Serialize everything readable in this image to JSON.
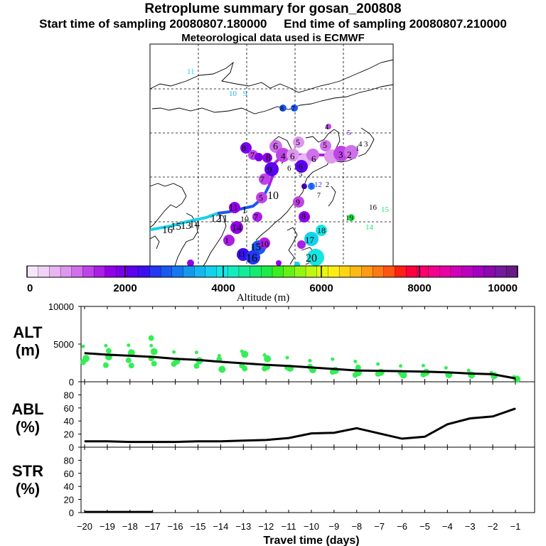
{
  "title": "Retroplume summary for gosan_200808",
  "subtitle_start": "Start time of sampling 20080807.180000",
  "subtitle_end": "End time of sampling 20080807.210000",
  "met_line": "Meteorological data used is ECMWF",
  "colorbar": {
    "label": "Altitude (m)",
    "ticks": [
      "0",
      "2000",
      "4000",
      "6000",
      "8000",
      "10000"
    ],
    "min": 0,
    "max": 10000,
    "colors": [
      "#f6e6fa",
      "#f0d2f6",
      "#e8b6f2",
      "#de96ee",
      "#d070ea",
      "#bf44e8",
      "#aa1ee6",
      "#9200e8",
      "#7a00ea",
      "#5c00ee",
      "#3a10f0",
      "#2238f2",
      "#1a58f0",
      "#1678f0",
      "#1498ee",
      "#14b8ee",
      "#14d2ec",
      "#14e6e2",
      "#14ecc0",
      "#14ec98",
      "#14ec70",
      "#1cec48",
      "#3cee20",
      "#66f014",
      "#94f414",
      "#c0f614",
      "#e4f614",
      "#fcee14",
      "#fed414",
      "#feb814",
      "#fe9a14",
      "#fe7814",
      "#fe5414",
      "#fe2014",
      "#fe0040",
      "#fa006a",
      "#f2008c",
      "#e600a6",
      "#d200b6",
      "#bc00c0",
      "#a400c0",
      "#8a0aae",
      "#741a9c",
      "#6a1a86"
    ]
  },
  "map_labels": [
    "11",
    "10",
    "9",
    "8",
    "7",
    "6",
    "5",
    "4",
    "3",
    "2",
    "1",
    "12",
    "13",
    "14",
    "15",
    "16",
    "17",
    "18",
    "19",
    "20"
  ],
  "chart_data": [
    {
      "id": "alt",
      "type": "line",
      "ylabel": "ALT\n(m)",
      "y_ticks": [
        0,
        5000,
        10000
      ],
      "ylim": [
        0,
        10000
      ],
      "x": [
        -20,
        -19,
        -18,
        -17,
        -16,
        -15,
        -14,
        -13,
        -12,
        -11,
        -10,
        -9,
        -8,
        -7,
        -6,
        -5,
        -4,
        -3,
        -2,
        -1
      ],
      "values": [
        3800,
        3600,
        3450,
        3300,
        3050,
        2900,
        2650,
        2450,
        2250,
        2100,
        1900,
        1700,
        1500,
        1450,
        1400,
        1350,
        1250,
        1100,
        1000,
        450
      ],
      "scatter_note": "green dots = particle cluster altitudes"
    },
    {
      "id": "abl",
      "type": "line",
      "ylabel": "ABL\n(%)",
      "y_ticks": [
        0,
        20,
        40,
        60,
        80
      ],
      "ylim": [
        0,
        95
      ],
      "x": [
        -20,
        -19,
        -18,
        -17,
        -16,
        -15,
        -14,
        -13,
        -12,
        -11,
        -10,
        -9,
        -8,
        -7,
        -6,
        -5,
        -4,
        -3,
        -2,
        -1
      ],
      "values": [
        9,
        9,
        8,
        8,
        8,
        9,
        9,
        10,
        11,
        14,
        21,
        22,
        29,
        21,
        13,
        16,
        35,
        44,
        47,
        59
      ]
    },
    {
      "id": "str",
      "type": "line",
      "ylabel": "STR\n(%)",
      "y_ticks": [
        0,
        20,
        40,
        60,
        80
      ],
      "ylim": [
        0,
        95
      ],
      "x": [
        -20,
        -19,
        -18,
        -17
      ],
      "values": [
        1,
        1,
        1,
        1
      ]
    }
  ],
  "xaxis": {
    "label": "Travel time (days)",
    "ticks": [
      "−20",
      "−19",
      "−18",
      "−17",
      "−16",
      "−15",
      "−14",
      "−13",
      "−12",
      "−11",
      "−10",
      "−9",
      "−8",
      "−7",
      "−6",
      "−5",
      "−4",
      "−3",
      "−2",
      "−1"
    ]
  }
}
